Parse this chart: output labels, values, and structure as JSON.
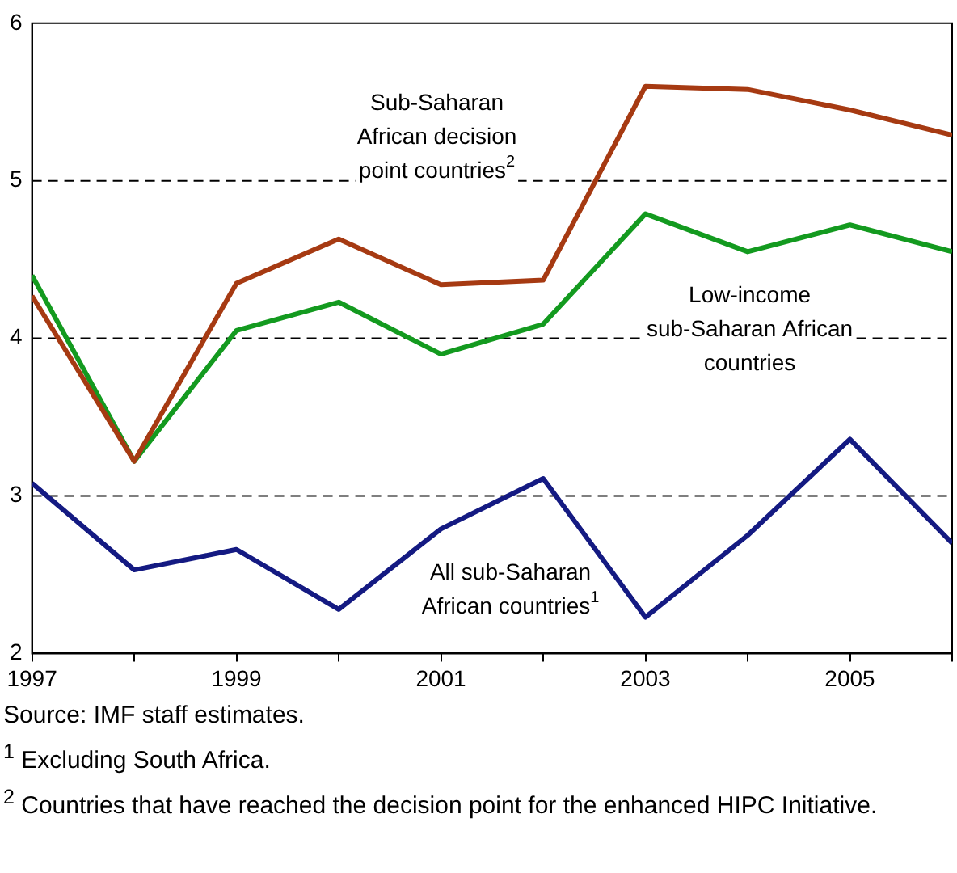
{
  "chart_data": {
    "type": "line",
    "x": [
      1997,
      1998,
      1999,
      2000,
      2001,
      2002,
      2003,
      2004,
      2005,
      2006
    ],
    "series": [
      {
        "name": "Sub-Saharan African decision point countries$^{2}$",
        "color": "#a63a12",
        "values": [
          4.27,
          3.22,
          4.35,
          4.63,
          4.34,
          4.37,
          5.6,
          5.58,
          5.45,
          5.29
        ]
      },
      {
        "name": "Low-income sub-Saharan African countries",
        "color": "#139a1f",
        "values": [
          4.4,
          3.22,
          4.05,
          4.23,
          3.9,
          4.09,
          4.79,
          4.55,
          4.72,
          4.55
        ]
      },
      {
        "name": "All sub-Saharan African countries$^{1}$",
        "color": "#141a82",
        "values": [
          3.08,
          2.53,
          2.66,
          2.28,
          2.79,
          3.11,
          2.23,
          2.75,
          3.36,
          2.7
        ]
      }
    ],
    "xlim": [
      1997,
      2006
    ],
    "xticks": [
      1997,
      {
        "value": 1998,
        "label": null
      },
      1999,
      {
        "value": 2000,
        "label": null
      },
      2001,
      {
        "value": 2002,
        "label": null
      },
      2003,
      {
        "value": 2004,
        "label": null
      },
      2005,
      {
        "value": 2006,
        "label": null
      }
    ],
    "ylim": [
      2,
      6
    ],
    "yticks": [
      2,
      3,
      4,
      5,
      6
    ],
    "grid": "y",
    "line_style": "solid",
    "marker": "none",
    "legend": false,
    "annotations": [
      "Source: IMF staff estimates.",
      "$^{1}$ Excluding South Africa.",
      "$^{2}$ Countries that have reached the decision point for the enhanced HIPC Initiative."
    ]
  }
}
